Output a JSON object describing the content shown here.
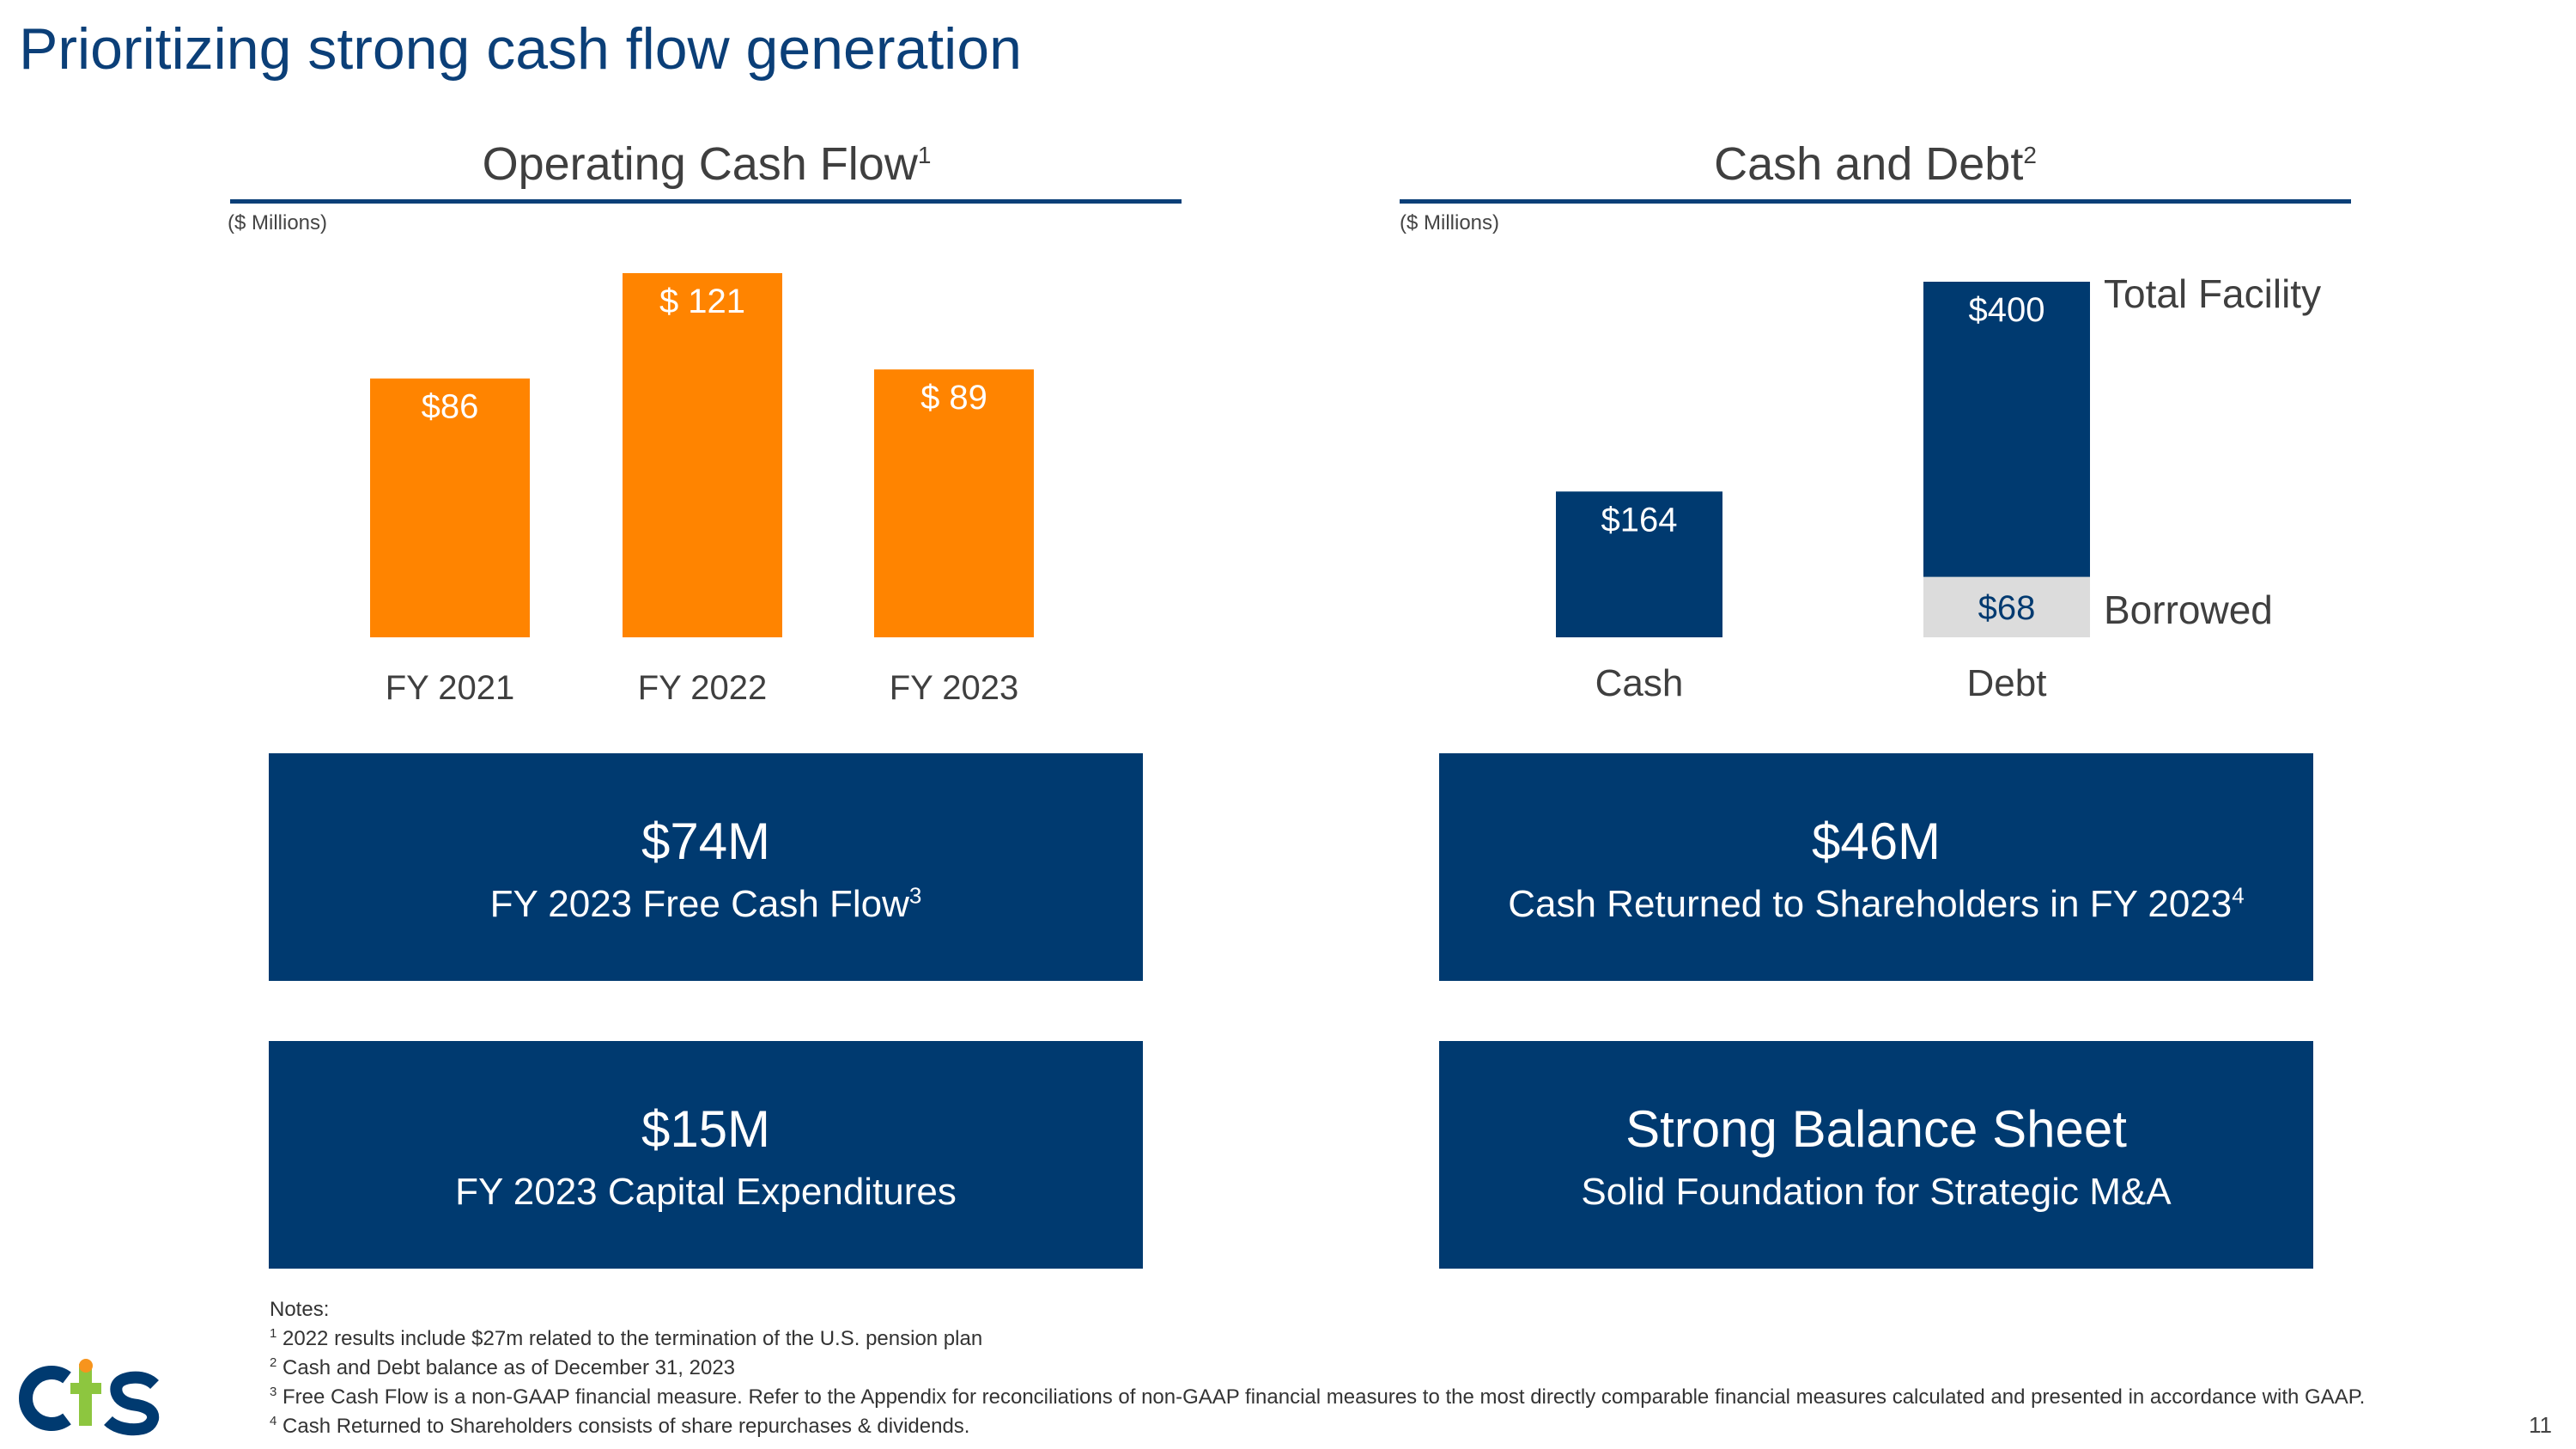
{
  "title": "Prioritizing strong cash flow generation",
  "left_panel": {
    "title": "Operating Cash Flow",
    "title_note": "1",
    "unit": "($ Millions)"
  },
  "right_panel": {
    "title": "Cash and Debt",
    "title_note": "2",
    "unit": "($ Millions)",
    "total_facility_label": "Total Facility",
    "borrowed_label": "Borrowed"
  },
  "chart_data": [
    {
      "type": "bar",
      "title": "Operating Cash Flow",
      "categories": [
        "FY 2021",
        "FY 2022",
        "FY 2023"
      ],
      "values": [
        86,
        121,
        89
      ],
      "data_labels": [
        "$86",
        "$ 121",
        "$ 89"
      ],
      "color": "#ff8400",
      "ylim": [
        0,
        121
      ]
    },
    {
      "type": "bar",
      "title": "Cash and Debt",
      "categories": [
        "Cash",
        "Debt"
      ],
      "series": [
        {
          "name": "Total Facility",
          "values": [
            164,
            400
          ],
          "data_labels": [
            "$164",
            "$400"
          ],
          "color": "#003a70"
        },
        {
          "name": "Borrowed",
          "values": [
            null,
            68
          ],
          "data_labels": [
            "",
            "$68"
          ],
          "color": "#dcdcdc"
        }
      ],
      "ylim": [
        0,
        400
      ]
    }
  ],
  "boxes": [
    {
      "big": "$74M",
      "sub": "FY 2023 Free Cash Flow",
      "note": "3"
    },
    {
      "big": "$46M",
      "sub": "Cash Returned to Shareholders in FY 2023",
      "note": "4"
    },
    {
      "big": "$15M",
      "sub": "FY 2023 Capital Expenditures",
      "note": ""
    },
    {
      "big": "Strong Balance Sheet",
      "sub": "Solid Foundation for Strategic M&A",
      "note": ""
    }
  ],
  "notes": {
    "heading": "Notes:",
    "items": [
      {
        "num": "1",
        "text": "2022 results include $27m related to the termination of the U.S. pension plan"
      },
      {
        "num": "2",
        "text": "Cash and Debt balance as of December 31, 2023"
      },
      {
        "num": "3",
        "text": "Free Cash Flow is a non-GAAP financial measure. Refer to the Appendix for reconciliations of non-GAAP financial measures to the most directly comparable financial measures calculated and presented in accordance with GAAP."
      },
      {
        "num": "4",
        "text": "Cash Returned to Shareholders consists of share repurchases & dividends."
      }
    ]
  },
  "page_number": "11",
  "logo": {
    "text": "cts",
    "colors": {
      "c": "#003a70",
      "t": "#8dc63f",
      "dot": "#f7941d"
    }
  }
}
